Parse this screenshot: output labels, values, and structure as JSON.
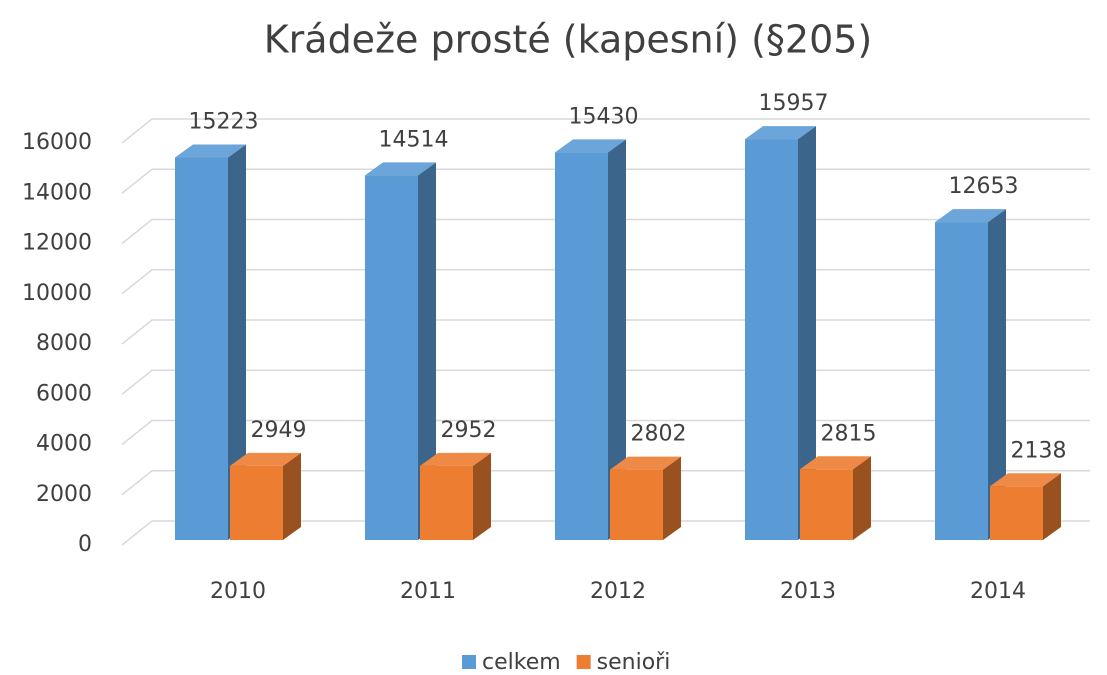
{
  "chart_data": {
    "type": "bar3d",
    "title": "Krádeže prosté (kapesní) (§205)",
    "categories": [
      "2010",
      "2011",
      "2012",
      "2013",
      "2014"
    ],
    "series": [
      {
        "name": "celkem",
        "color": "#5b9bd5",
        "values": [
          15223,
          14514,
          15430,
          15957,
          12653
        ]
      },
      {
        "name": "senioři",
        "color": "#ed7d31",
        "values": [
          2949,
          2952,
          2802,
          2815,
          2138
        ]
      }
    ],
    "ylim": [
      0,
      16000
    ],
    "yticks": [
      0,
      2000,
      4000,
      6000,
      8000,
      10000,
      12000,
      14000,
      16000
    ],
    "grid": true,
    "legend": "bottom"
  }
}
